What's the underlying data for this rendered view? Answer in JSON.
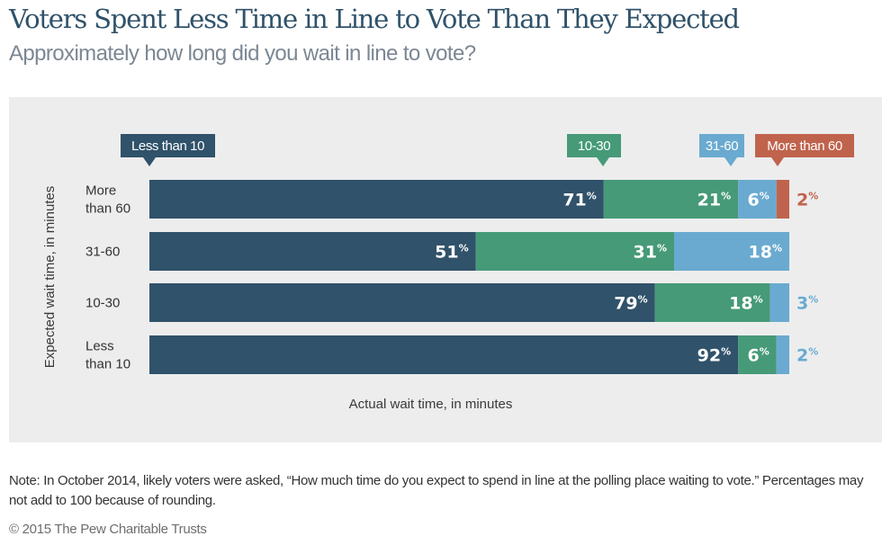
{
  "header": {
    "title": "Voters Spent Less Time in Line to Vote Than They Expected",
    "subtitle": "Approximately how long did you wait in line to vote?"
  },
  "chart_data": {
    "type": "bar",
    "orientation": "horizontal",
    "stacked": true,
    "title": "Voters Spent Less Time in Line to Vote Than They Expected",
    "subtitle": "Approximately how long did you wait in line to vote?",
    "ylabel": "Expected wait time, in minutes",
    "xlabel": "Actual wait time, in minutes",
    "xlim": [
      0,
      100
    ],
    "grid": false,
    "legend_position": "top",
    "categories": [
      "More than 60",
      "31-60",
      "10-30",
      "Less than 10"
    ],
    "category_lines": [
      [
        "More",
        "than 60"
      ],
      [
        "31-60"
      ],
      [
        "10-30"
      ],
      [
        "Less",
        "than 10"
      ]
    ],
    "series": [
      {
        "name": "Less than 10",
        "color": "#30526a",
        "values": [
          71,
          51,
          79,
          92
        ]
      },
      {
        "name": "10-30",
        "color": "#469a78",
        "values": [
          21,
          31,
          18,
          6
        ]
      },
      {
        "name": "31-60",
        "color": "#6aaad0",
        "values": [
          6,
          18,
          3,
          2
        ]
      },
      {
        "name": "More than 60",
        "color": "#c0634d",
        "values": [
          2,
          0,
          0,
          0
        ]
      }
    ],
    "value_suffix": "%"
  },
  "footer": {
    "note": "Note: In October 2014, likely voters were asked, “How much time do you expect to spend in line at the polling place waiting to vote.” Percentages may not add to 100 because of rounding.",
    "copyright": "© 2015 The Pew Charitable Trusts"
  }
}
